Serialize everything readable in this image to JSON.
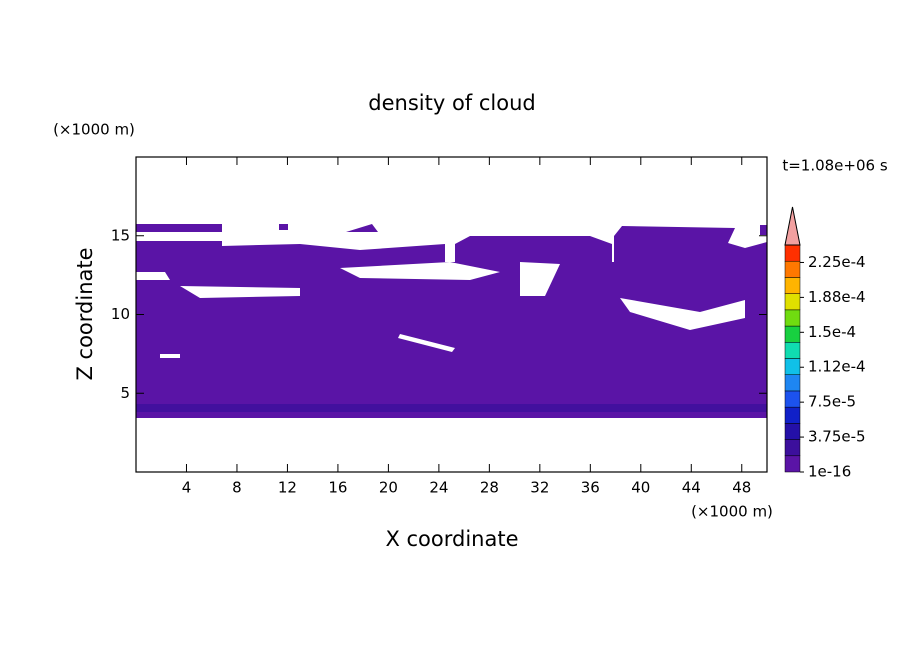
{
  "chart_data": {
    "type": "contour",
    "title": "density of cloud",
    "subtitle": "t=1.08e+06 s",
    "x_label": "X coordinate",
    "y_label": "Z coordinate",
    "x_unit": "(×1000 m)",
    "y_unit": "(×1000 m)",
    "xlim": [
      0,
      50
    ],
    "xticks": [
      4,
      8,
      12,
      16,
      20,
      24,
      28,
      32,
      36,
      40,
      44,
      48
    ],
    "ylim": [
      0,
      20
    ],
    "yticks": [
      5,
      10,
      15
    ],
    "colorbar": {
      "lim": [
        1e-16,
        0.00024375
      ],
      "colors": [
        "#5a14a6",
        "#3c0f9c",
        "#2410a8",
        "#1020c8",
        "#1c52ee",
        "#1e86f2",
        "#10c0e8",
        "#10dcb0",
        "#18d040",
        "#70dc10",
        "#e0e000",
        "#ffb400",
        "#ff7800",
        "#ff3000"
      ],
      "extend_color": "#f2a0a0",
      "ticks": [
        {
          "value": 1e-16,
          "label": "1e-16"
        },
        {
          "value": 3.75e-05,
          "label": "3.75e-5"
        },
        {
          "value": 7.5e-05,
          "label": "7.5e-5"
        },
        {
          "value": 0.0001125,
          "label": "1.12e-4"
        },
        {
          "value": 0.00015,
          "label": "1.5e-4"
        },
        {
          "value": 0.0001875,
          "label": "1.88e-4"
        },
        {
          "value": 0.000225,
          "label": "2.25e-4"
        }
      ]
    }
  }
}
